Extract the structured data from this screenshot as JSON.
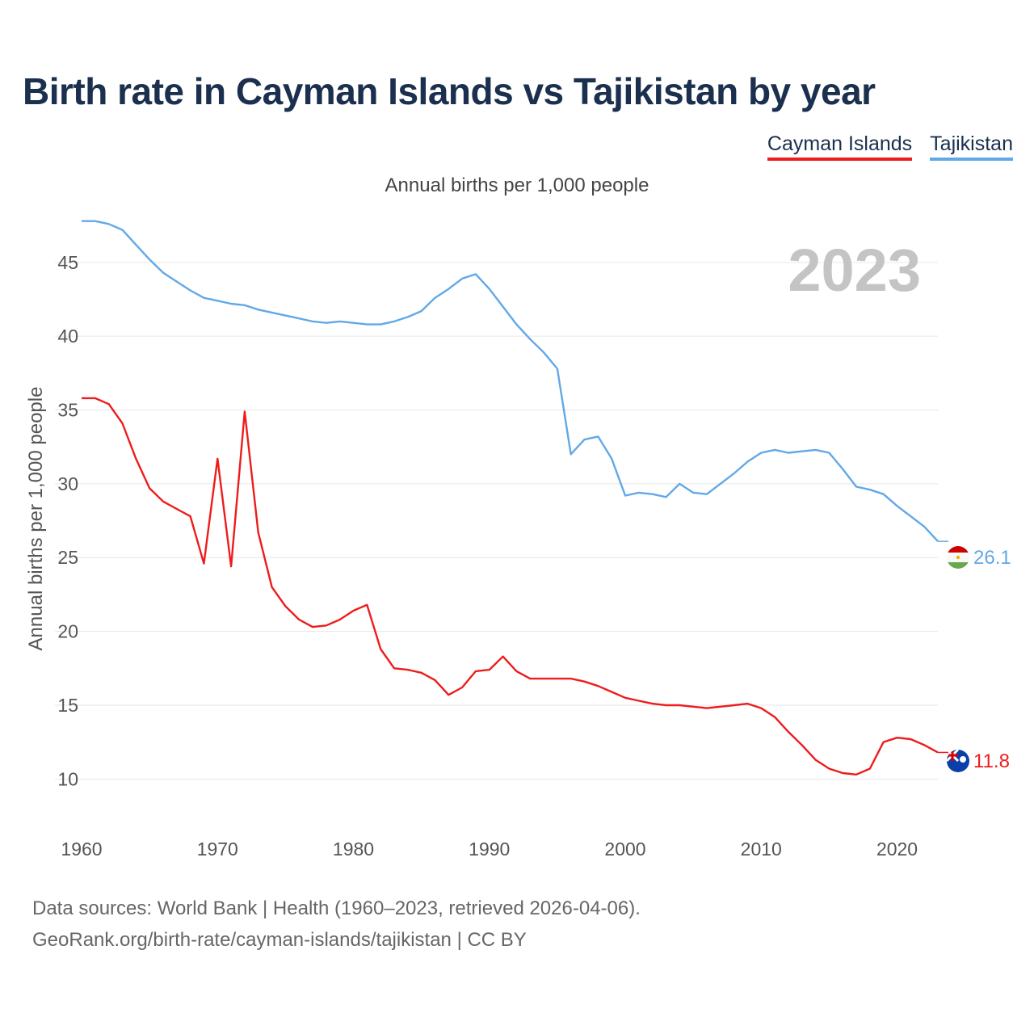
{
  "title": "Birth rate in Cayman Islands vs Tajikistan by year",
  "subtitle": "Annual births per 1,000 people",
  "legend": [
    {
      "name": "Cayman Islands",
      "color": "#ee1c1c"
    },
    {
      "name": "Tajikistan",
      "color": "#62a8e8"
    }
  ],
  "footer": {
    "line1": "Data sources: World Bank | Health (1960–2023, retrieved 2026-04-06).",
    "line2": "GeoRank.org/birth-rate/cayman-islands/tajikistan | CC BY"
  },
  "chart_data": {
    "type": "line",
    "title": "Birth rate in Cayman Islands vs Tajikistan by year",
    "ylabel": "Annual births per 1,000 people",
    "xlabel": "",
    "year_watermark": "2023",
    "x": [
      1960,
      1961,
      1962,
      1963,
      1964,
      1965,
      1966,
      1967,
      1968,
      1969,
      1970,
      1971,
      1972,
      1973,
      1974,
      1975,
      1976,
      1977,
      1978,
      1979,
      1980,
      1981,
      1982,
      1983,
      1984,
      1985,
      1986,
      1987,
      1988,
      1989,
      1990,
      1991,
      1992,
      1993,
      1994,
      1995,
      1996,
      1997,
      1998,
      1999,
      2000,
      2001,
      2002,
      2003,
      2004,
      2005,
      2006,
      2007,
      2008,
      2009,
      2010,
      2011,
      2012,
      2013,
      2014,
      2015,
      2016,
      2017,
      2018,
      2019,
      2020,
      2021,
      2022,
      2023
    ],
    "xlim": [
      1960,
      2023
    ],
    "ylim": [
      7.5,
      48
    ],
    "xticks": [
      1960,
      1970,
      1980,
      1990,
      2000,
      2010,
      2020
    ],
    "yticks": [
      10,
      15,
      20,
      25,
      30,
      35,
      40,
      45
    ],
    "grid": true,
    "series": [
      {
        "name": "Tajikistan",
        "color": "#62a8e8",
        "end_label": "26.1",
        "flag": "tajikistan-flag-icon",
        "values": [
          47.8,
          47.8,
          47.6,
          47.2,
          46.2,
          45.2,
          44.3,
          43.7,
          43.1,
          42.6,
          42.4,
          42.2,
          42.1,
          41.8,
          41.6,
          41.4,
          41.2,
          41.0,
          40.9,
          41.0,
          40.9,
          40.8,
          40.8,
          41.0,
          41.3,
          41.7,
          42.6,
          43.2,
          43.9,
          44.2,
          43.2,
          42.0,
          40.8,
          39.8,
          38.9,
          37.8,
          32.0,
          33.0,
          33.2,
          31.7,
          29.2,
          29.4,
          29.3,
          29.1,
          30.0,
          29.4,
          29.3,
          30.0,
          30.7,
          31.5,
          32.1,
          32.3,
          32.1,
          32.2,
          32.3,
          32.1,
          31.0,
          29.8,
          29.6,
          29.3,
          28.5,
          27.8,
          27.1,
          26.1
        ]
      },
      {
        "name": "Cayman Islands",
        "color": "#ee1c1c",
        "end_label": "11.8",
        "flag": "cayman-islands-flag-icon",
        "values": [
          35.8,
          35.8,
          35.4,
          34.1,
          31.7,
          29.7,
          28.8,
          28.3,
          27.8,
          24.6,
          31.7,
          24.4,
          34.9,
          26.7,
          23.0,
          21.7,
          20.8,
          20.3,
          20.4,
          20.8,
          21.4,
          21.8,
          18.8,
          17.5,
          17.4,
          17.2,
          16.7,
          15.7,
          16.2,
          17.3,
          17.4,
          18.3,
          17.3,
          16.8,
          16.8,
          16.8,
          16.8,
          16.6,
          16.3,
          15.9,
          15.5,
          15.3,
          15.1,
          15.0,
          15.0,
          14.9,
          14.8,
          14.9,
          15.0,
          15.1,
          14.8,
          14.2,
          13.2,
          12.3,
          11.3,
          10.7,
          10.4,
          10.3,
          10.7,
          12.5,
          12.8,
          12.7,
          12.3,
          11.8
        ]
      }
    ]
  }
}
